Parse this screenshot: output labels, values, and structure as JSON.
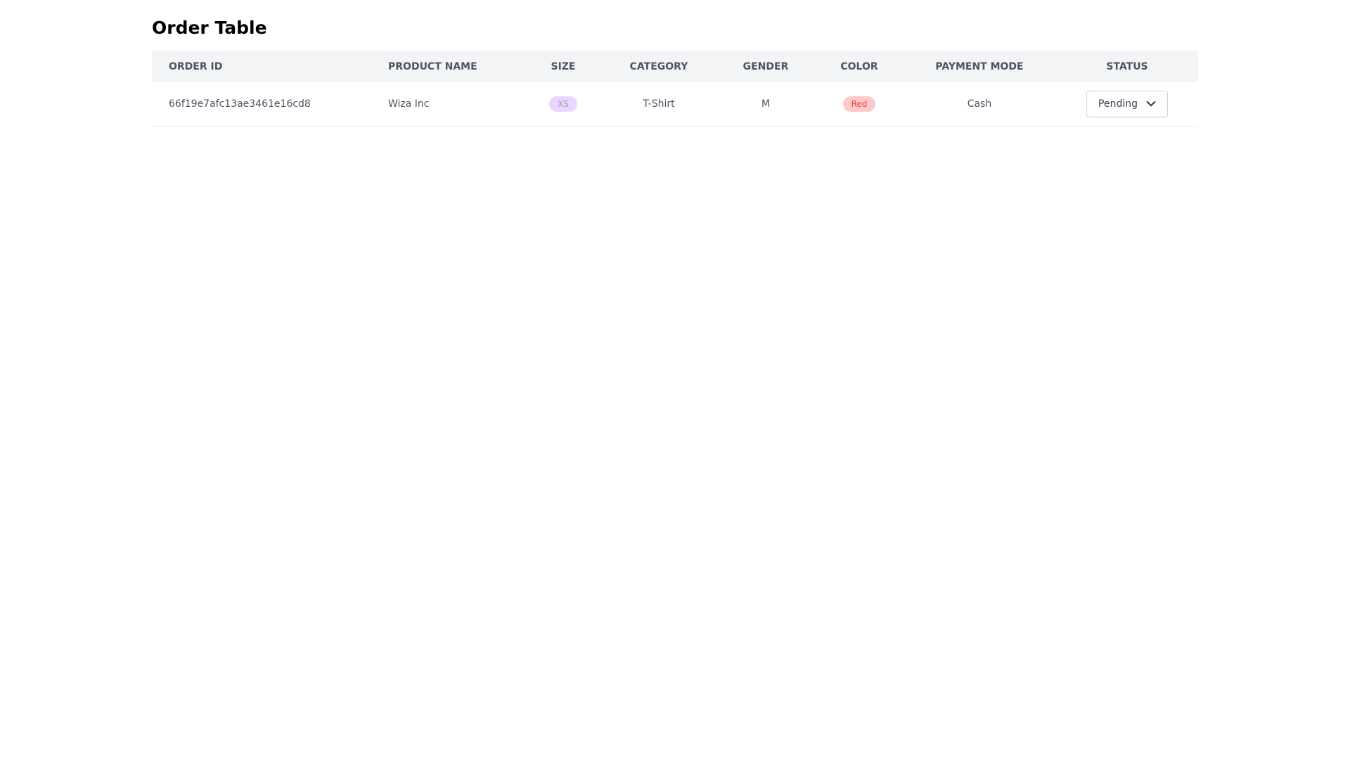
{
  "page": {
    "title": "Order Table"
  },
  "table": {
    "columns": [
      "Order ID",
      "Product Name",
      "Size",
      "Category",
      "Gender",
      "Color",
      "Payment Mode",
      "Status"
    ],
    "rows": [
      {
        "order_id": "66f19e7afc13ae3461e16cd8",
        "product_name": "Wiza Inc",
        "size": "XS",
        "category": "T-Shirt",
        "gender": "M",
        "color": "Red",
        "payment_mode": "Cash",
        "status": "Pending"
      }
    ]
  },
  "icons": {
    "status_dropdown": "chevron-down-icon"
  },
  "colors": {
    "size_badge_bg": "#e9d5ff",
    "color_badge_bg": "#fecaca",
    "color_badge_text": "#ef4444",
    "header_bg": "#f3f4f6"
  }
}
